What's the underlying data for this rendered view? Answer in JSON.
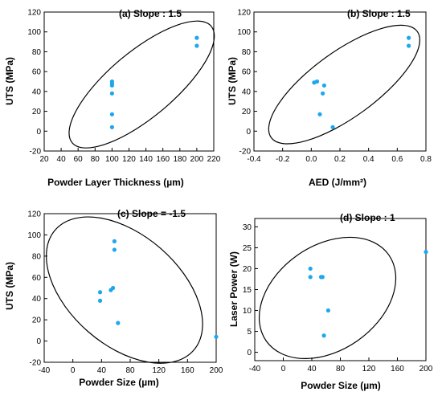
{
  "chart_data": [
    {
      "type": "scatter",
      "title": "(a) Slope : 1.5",
      "xlabel": "Powder Layer Thickness (µm)",
      "ylabel": "UTS (MPa)",
      "xlim": [
        20,
        220
      ],
      "ylim": [
        -20,
        120
      ],
      "xticks": [
        "20",
        "40",
        "60",
        "80",
        "100",
        "120",
        "140",
        "160",
        "180",
        "200",
        "220"
      ],
      "yticks": [
        "-20",
        "0",
        "20",
        "40",
        "60",
        "80",
        "100",
        "120"
      ],
      "points": [
        {
          "x": 100,
          "y": 4
        },
        {
          "x": 100,
          "y": 17
        },
        {
          "x": 100,
          "y": 38
        },
        {
          "x": 100,
          "y": 46
        },
        {
          "x": 100,
          "y": 48
        },
        {
          "x": 100,
          "y": 50
        },
        {
          "x": 200,
          "y": 86
        },
        {
          "x": 200,
          "y": 94
        }
      ],
      "ellipse": {
        "cx": 135,
        "cy": 47,
        "rx": 107,
        "ry": 33,
        "angle_deg": -40
      },
      "marker_color": "#1ea7ec",
      "grid": false
    },
    {
      "type": "scatter",
      "title": "(b) Slope : 1.5",
      "xlabel": "AED (J/mm²)",
      "ylabel": "UTS (MPa)",
      "xlim": [
        -0.4,
        0.8
      ],
      "ylim": [
        -20,
        120
      ],
      "xticks": [
        "-0.4",
        "-0.2",
        "0.0",
        "0.2",
        "0.4",
        "0.6",
        "0.8"
      ],
      "yticks": [
        "-20",
        "0",
        "20",
        "40",
        "60",
        "80",
        "100",
        "120"
      ],
      "points": [
        {
          "x": 0.02,
          "y": 49
        },
        {
          "x": 0.04,
          "y": 50
        },
        {
          "x": 0.06,
          "y": 17
        },
        {
          "x": 0.08,
          "y": 38
        },
        {
          "x": 0.09,
          "y": 46
        },
        {
          "x": 0.15,
          "y": 4
        },
        {
          "x": 0.68,
          "y": 86
        },
        {
          "x": 0.68,
          "y": 94
        }
      ],
      "ellipse": {
        "cx": 0.23,
        "cy": 47,
        "rx": 0.63,
        "ry": 33,
        "angle_deg": -36
      },
      "marker_color": "#1ea7ec",
      "grid": false
    },
    {
      "type": "scatter",
      "title": "(c) Slope = -1.5",
      "xlabel": "Powder Size (µm)",
      "ylabel": "UTS (MPa)",
      "xlim": [
        -40,
        200
      ],
      "ylim": [
        -20,
        120
      ],
      "xticks": [
        "-40",
        "0",
        "40",
        "80",
        "120",
        "160",
        "200"
      ],
      "yticks": [
        "-20",
        "0",
        "20",
        "40",
        "60",
        "80",
        "100",
        "120"
      ],
      "points": [
        {
          "x": 38,
          "y": 46
        },
        {
          "x": 38,
          "y": 38
        },
        {
          "x": 53,
          "y": 48
        },
        {
          "x": 56,
          "y": 50
        },
        {
          "x": 58,
          "y": 86
        },
        {
          "x": 58,
          "y": 94
        },
        {
          "x": 63,
          "y": 17
        },
        {
          "x": 200,
          "y": 4
        }
      ],
      "ellipse": {
        "cx": 72,
        "cy": 48,
        "rx": 128,
        "ry": 52,
        "angle_deg": 41
      },
      "marker_color": "#1ea7ec",
      "grid": false
    },
    {
      "type": "scatter",
      "title": "(d) Slope : 1",
      "xlabel": "Powder Size (µm)",
      "ylabel": "Laser Power (W)",
      "xlim": [
        -40,
        200
      ],
      "ylim": [
        -2,
        32
      ],
      "xticks": [
        "-40",
        "0",
        "40",
        "80",
        "120",
        "160",
        "200"
      ],
      "yticks": [
        "0",
        "5",
        "10",
        "15",
        "20",
        "25",
        "30"
      ],
      "points": [
        {
          "x": 38,
          "y": 20
        },
        {
          "x": 38,
          "y": 18
        },
        {
          "x": 53,
          "y": 18
        },
        {
          "x": 55,
          "y": 18
        },
        {
          "x": 57,
          "y": 4
        },
        {
          "x": 63,
          "y": 10
        },
        {
          "x": 200,
          "y": 24
        }
      ],
      "ellipse": {
        "cx": 62,
        "cy": 13,
        "rx": 105,
        "ry": 12.5,
        "angle_deg": -35
      },
      "marker_color": "#1ea7ec",
      "grid": false
    }
  ]
}
